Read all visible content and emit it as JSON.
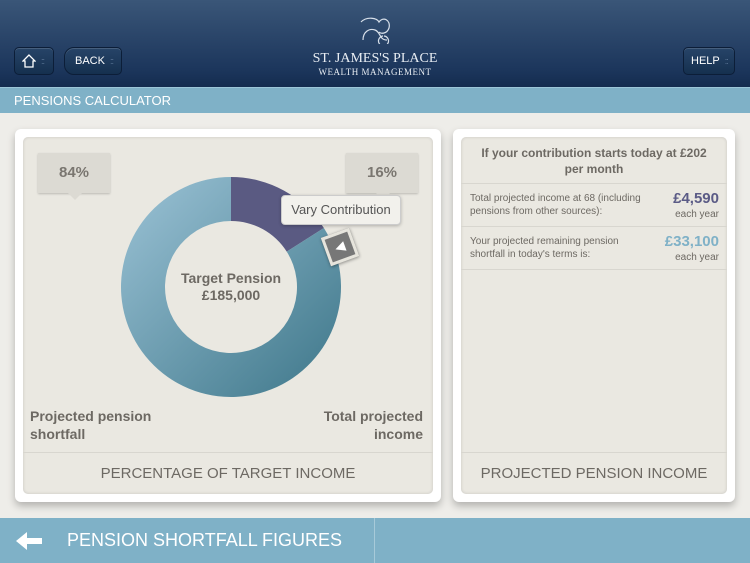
{
  "header": {
    "home_icon": "home-icon",
    "back_label": "BACK",
    "help_label": "HELP",
    "logo_line1": "ST. JAMES'S PLACE",
    "logo_line2": "WEALTH MANAGEMENT"
  },
  "title": "PENSIONS CALCULATOR",
  "left_panel": {
    "shortfall_pct": "84%",
    "income_pct": "16%",
    "center_title": "Target Pension",
    "center_value": "£185,000",
    "tooltip": "Vary Contribution",
    "label_shortfall": "Projected pension shortfall",
    "label_income": "Total projected income",
    "footer": "PERCENTAGE OF TARGET INCOME"
  },
  "right_panel": {
    "heading": "If your contribution starts today at £202 per month",
    "rows": [
      {
        "text": "Total projected income at 68 (including pensions from other sources):",
        "value": "£4,590",
        "unit": "each year",
        "color": "#5b5b86"
      },
      {
        "text": "Your projected remaining pension shortfall in today's terms is:",
        "value": "£33,100",
        "unit": "each year",
        "color": "#7fb1c7"
      }
    ],
    "footer": "PROJECTED PENSION INCOME"
  },
  "bottom": {
    "label": "PENSION SHORTFALL FIGURES",
    "arrow_icon": "arrow-left-icon"
  },
  "chart_data": {
    "type": "pie",
    "donut": true,
    "categories": [
      "Total projected income",
      "Projected pension shortfall"
    ],
    "values": [
      16,
      84
    ],
    "colors": [
      "#5a5a82",
      "#6a9fb6"
    ]
  }
}
